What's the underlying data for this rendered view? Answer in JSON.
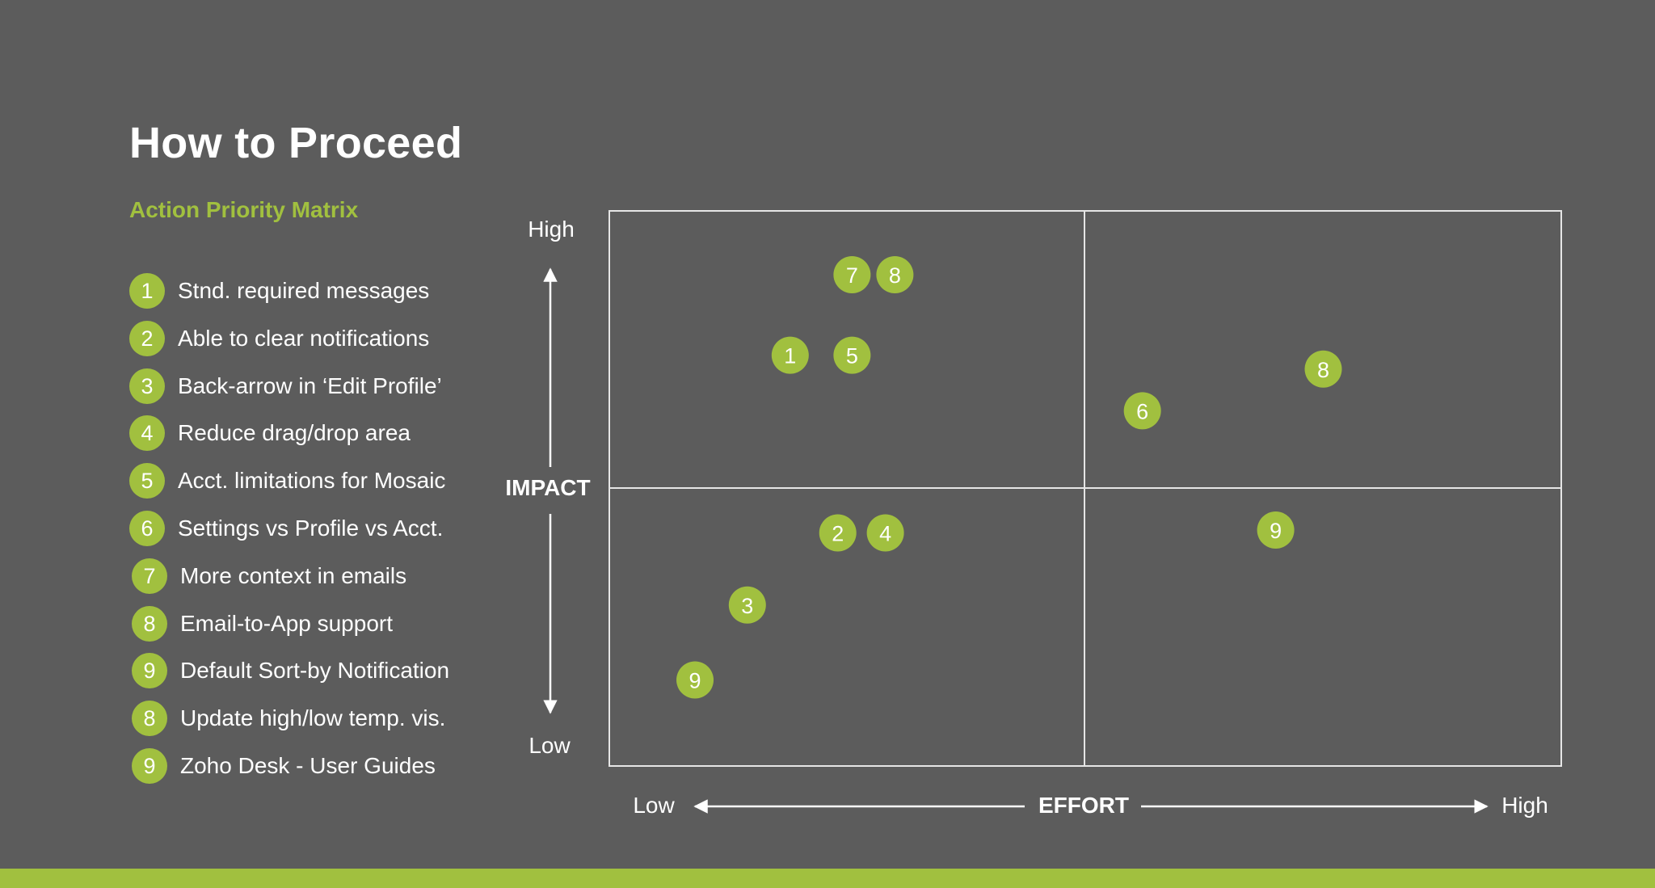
{
  "title": "How to Proceed",
  "subtitle": "Action Priority Matrix",
  "colors": {
    "background": "#5c5c5c",
    "accent": "#a1c03f",
    "text": "#ffffff"
  },
  "legend": [
    {
      "num": "1",
      "label": "Stnd. required messages"
    },
    {
      "num": "2",
      "label": "Able to clear notifications"
    },
    {
      "num": "3",
      "label": "Back-arrow in ‘Edit Profile’"
    },
    {
      "num": "4",
      "label": "Reduce drag/drop area"
    },
    {
      "num": "5",
      "label": "Acct. limitations for Mosaic"
    },
    {
      "num": "6",
      "label": "Settings vs Profile vs Acct."
    },
    {
      "num": "7",
      "label": "More context in emails"
    },
    {
      "num": "8",
      "label": "Email-to-App support"
    },
    {
      "num": "9",
      "label": "Default Sort-by Notification"
    },
    {
      "num": "8",
      "label": "Update high/low temp. vis."
    },
    {
      "num": "9",
      "label": "Zoho Desk - User Guides"
    }
  ],
  "chart_data": {
    "type": "scatter",
    "title": "Action Priority Matrix",
    "xlabel": "EFFORT",
    "ylabel": "IMPACT",
    "x_low_label": "Low",
    "x_high_label": "High",
    "y_low_label": "Low",
    "y_high_label": "High",
    "xlim": [
      0,
      100
    ],
    "ylim": [
      0,
      100
    ],
    "quadrant_split": {
      "x": 50,
      "y": 50
    },
    "points": [
      {
        "label": "7",
        "x": 25.5,
        "y": 88.5
      },
      {
        "label": "8",
        "x": 30,
        "y": 88.5
      },
      {
        "label": "1",
        "x": 19,
        "y": 74
      },
      {
        "label": "5",
        "x": 25.5,
        "y": 74
      },
      {
        "label": "8",
        "x": 75,
        "y": 71.5
      },
      {
        "label": "6",
        "x": 56,
        "y": 64
      },
      {
        "label": "2",
        "x": 24,
        "y": 42
      },
      {
        "label": "4",
        "x": 29,
        "y": 42
      },
      {
        "label": "9",
        "x": 70,
        "y": 42.5
      },
      {
        "label": "3",
        "x": 14.5,
        "y": 29
      },
      {
        "label": "9",
        "x": 9,
        "y": 15.5
      }
    ]
  }
}
